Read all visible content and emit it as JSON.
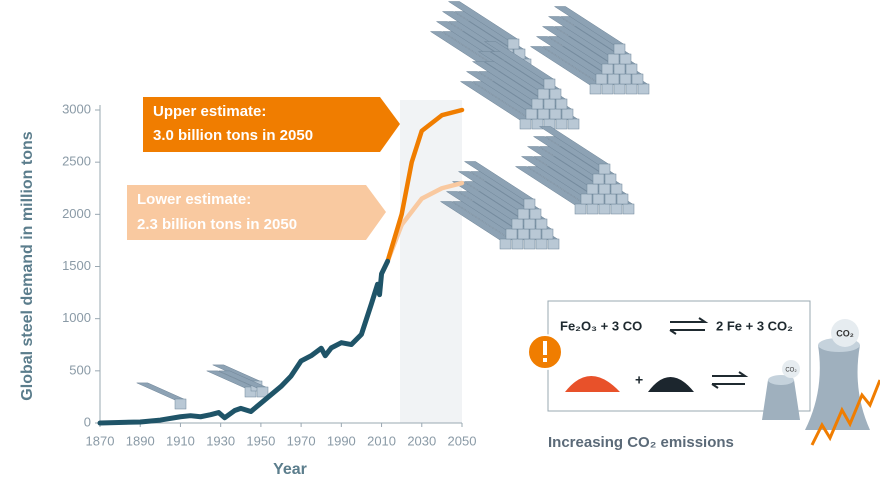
{
  "chart_data": {
    "type": "line",
    "y_label": "Global steel demand in million tons",
    "x_label": "Year",
    "xlim": [
      1870,
      2050
    ],
    "xticks": [
      1870,
      1890,
      1910,
      1930,
      1950,
      1970,
      1990,
      2010,
      2030,
      2050
    ],
    "ylim": [
      0,
      3000
    ],
    "yticks": [
      0,
      500,
      1000,
      1500,
      2000,
      2500,
      3000
    ],
    "series": [
      {
        "name": "Historical demand",
        "color": "#1f5468",
        "x": [
          1870,
          1890,
          1900,
          1910,
          1915,
          1920,
          1925,
          1929,
          1932,
          1937,
          1940,
          1945,
          1950,
          1955,
          1960,
          1965,
          1970,
          1975,
          1980,
          1982,
          1985,
          1990,
          1995,
          2000,
          2005,
          2008,
          2009,
          2010,
          2013
        ],
        "values": [
          0,
          10,
          28,
          60,
          70,
          60,
          80,
          100,
          50,
          120,
          140,
          110,
          190,
          270,
          350,
          450,
          595,
          645,
          717,
          645,
          720,
          770,
          752,
          850,
          1145,
          1330,
          1230,
          1430,
          1550
        ]
      },
      {
        "name": "Upper estimate",
        "color": "#f07d00",
        "x": [
          2013,
          2020,
          2025,
          2030,
          2040,
          2050
        ],
        "values": [
          1550,
          2000,
          2500,
          2800,
          2950,
          3000
        ]
      },
      {
        "name": "Lower estimate",
        "color": "#f9c9a0",
        "x": [
          2013,
          2020,
          2030,
          2040,
          2050
        ],
        "values": [
          1550,
          1900,
          2150,
          2250,
          2300
        ]
      }
    ],
    "annotations": [
      {
        "lines": [
          "Upper estimate:",
          "3.0 billion tons in 2050"
        ]
      },
      {
        "lines": [
          "Lower estimate:",
          "2.3 billion tons in 2050"
        ]
      }
    ],
    "inset": {
      "equation_left": "Fe₂O₃ + 3 CO",
      "equation_right": "2 Fe + 3 CO₂",
      "plus": "+",
      "co2_labels": [
        "CO₂",
        "CO₂"
      ],
      "caption": "Increasing CO₂ emissions"
    }
  }
}
